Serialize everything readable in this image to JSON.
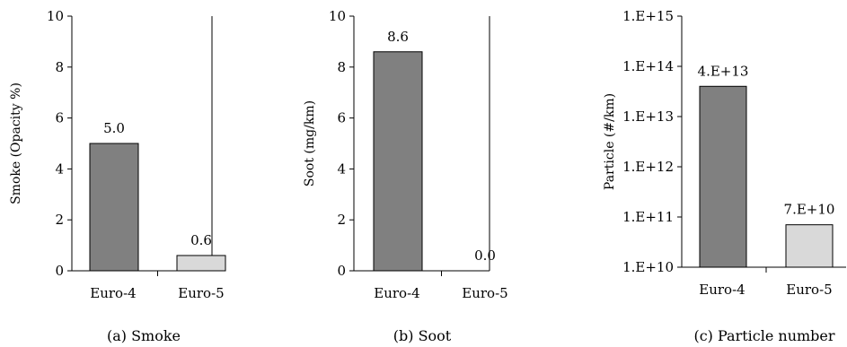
{
  "chart_data": [
    {
      "type": "bar",
      "caption": "(a) Smoke",
      "ylabel": "Smoke (Opacity %)",
      "categories": [
        "Euro-4",
        "Euro-5"
      ],
      "values": [
        5.0,
        0.6
      ],
      "data_labels": [
        "5.0",
        "0.6"
      ],
      "colors": [
        "#808080",
        "#d9d9d9"
      ],
      "ylim": [
        0,
        10
      ],
      "yscale": "linear",
      "yticks": [
        0,
        2,
        4,
        6,
        8,
        10
      ],
      "ytick_labels": [
        "0",
        "2",
        "4",
        "6",
        "8",
        "10"
      ]
    },
    {
      "type": "bar",
      "caption": "(b) Soot",
      "ylabel": "Soot (mg/km)",
      "categories": [
        "Euro-4",
        "Euro-5"
      ],
      "values": [
        8.6,
        0.0
      ],
      "data_labels": [
        "8.6",
        "0.0"
      ],
      "colors": [
        "#808080",
        "#d9d9d9"
      ],
      "ylim": [
        0,
        10
      ],
      "yscale": "linear",
      "yticks": [
        0,
        2,
        4,
        6,
        8,
        10
      ],
      "ytick_labels": [
        "0",
        "2",
        "4",
        "6",
        "8",
        "10"
      ]
    },
    {
      "type": "bar",
      "caption": "(c) Particle number",
      "ylabel": "Particle (#/km)",
      "categories": [
        "Euro-4",
        "Euro-5"
      ],
      "values": [
        40000000000000.0,
        70000000000.0
      ],
      "data_labels": [
        "4.E+13",
        "7.E+10"
      ],
      "colors": [
        "#808080",
        "#d9d9d9"
      ],
      "ylim": [
        10000000000.0,
        1000000000000000.0
      ],
      "yscale": "log",
      "yticks": [
        10000000000.0,
        100000000000.0,
        1000000000000.0,
        10000000000000.0,
        100000000000000.0,
        1000000000000000.0
      ],
      "ytick_labels": [
        "1.E+10",
        "1.E+11",
        "1.E+12",
        "1.E+13",
        "1.E+14",
        "1.E+15"
      ]
    }
  ]
}
